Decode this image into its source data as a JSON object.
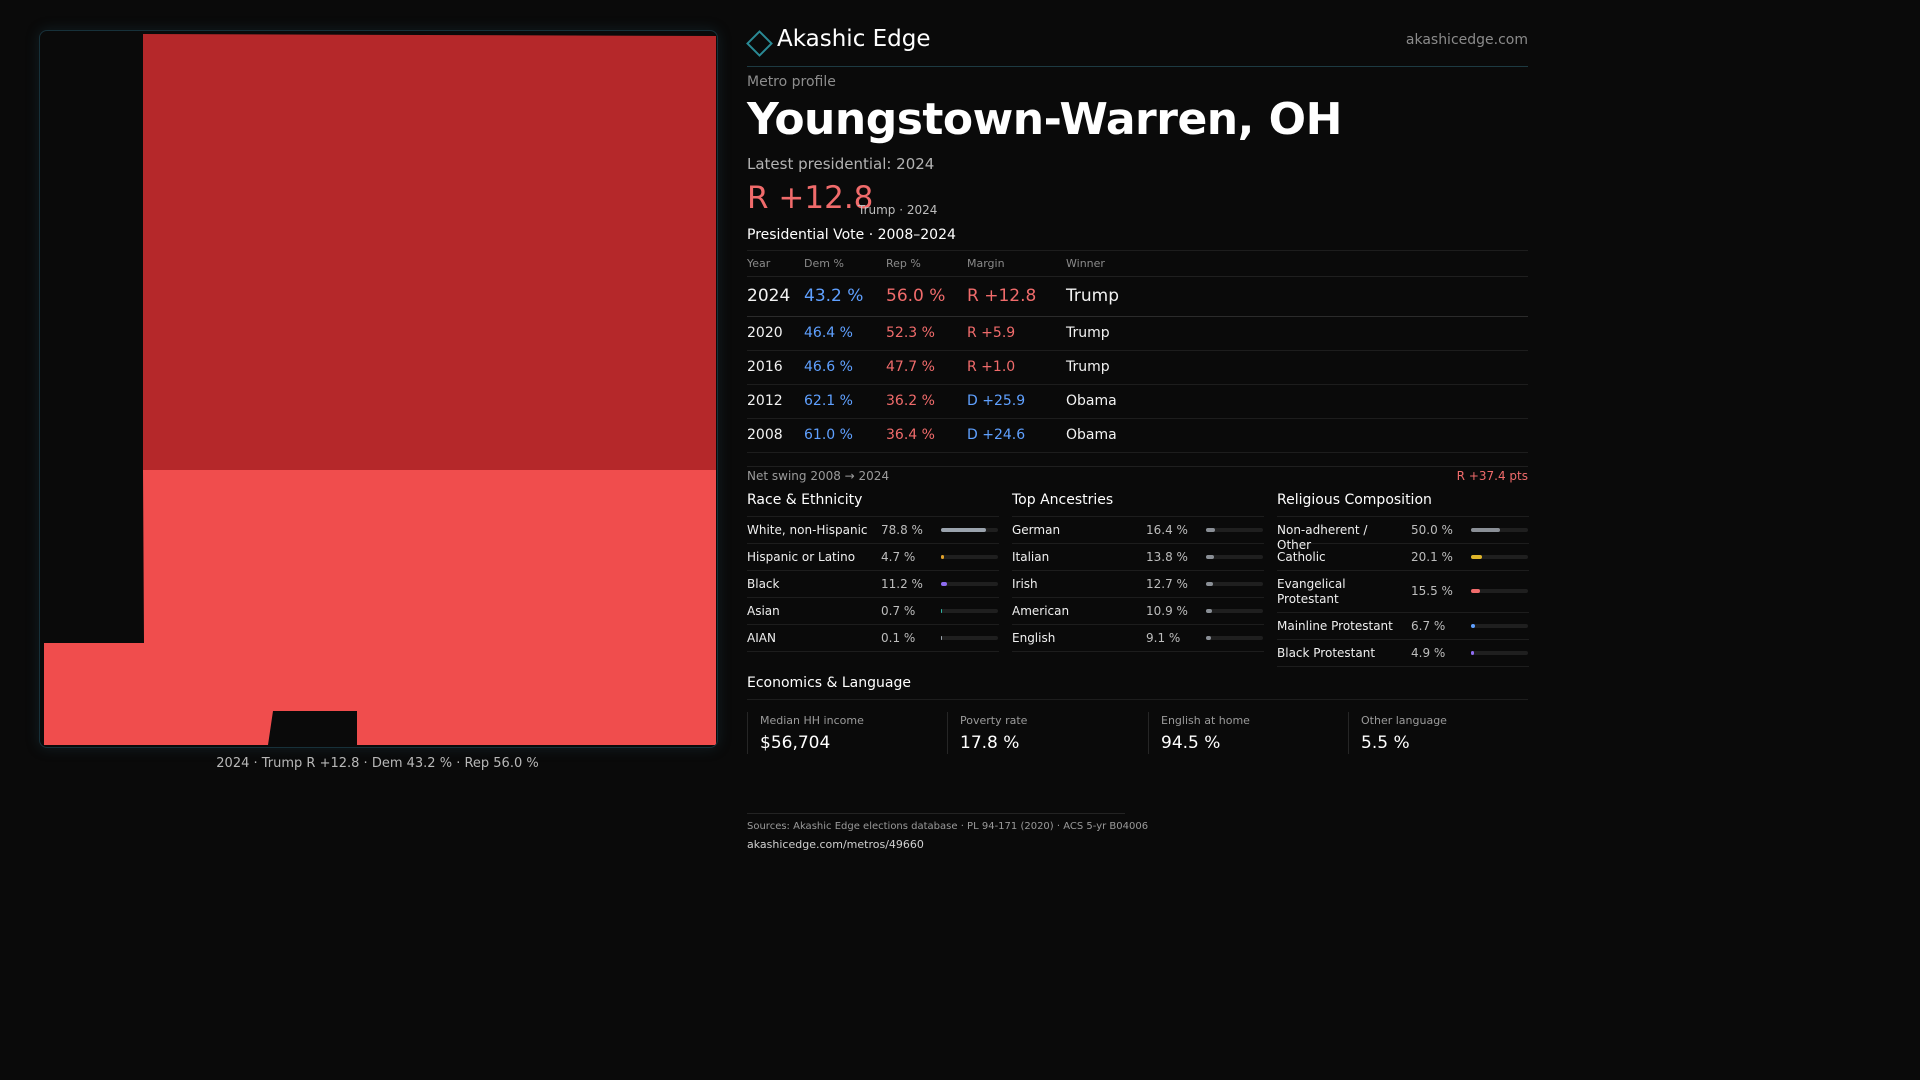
{
  "map": {
    "caption": "2024 · Trump R +12.8 · Dem 43.2 % · Rep 56.0 %",
    "colors": {
      "dark_red": "#b5282a",
      "light_red": "#f04d4d",
      "background": "#0a0a0a"
    }
  },
  "header": {
    "brand": "Akashic Edge",
    "url": "akashicedge.com",
    "kicker": "Metro profile",
    "title": "Youngstown-Warren,  OH",
    "latest_label": "Latest presidential: 2024",
    "margin": "R +12.8",
    "margin_note": "Trump · 2024"
  },
  "vote": {
    "title": "Presidential Vote · 2008–2024",
    "columns": [
      "Year",
      "Dem %",
      "Rep %",
      "Margin",
      "Winner"
    ],
    "rows": [
      {
        "year": "2024",
        "dem": "43.2 %",
        "rep": "56.0 %",
        "margin": "R +12.8",
        "winner": "Trump",
        "margin_party": "R"
      },
      {
        "year": "2020",
        "dem": "46.4 %",
        "rep": "52.3 %",
        "margin": "R +5.9",
        "winner": "Trump",
        "margin_party": "R"
      },
      {
        "year": "2016",
        "dem": "46.6 %",
        "rep": "47.7 %",
        "margin": "R +1.0",
        "winner": "Trump",
        "margin_party": "R"
      },
      {
        "year": "2012",
        "dem": "62.1 %",
        "rep": "36.2 %",
        "margin": "D +25.9",
        "winner": "Obama",
        "margin_party": "D"
      },
      {
        "year": "2008",
        "dem": "61.0 %",
        "rep": "36.4 %",
        "margin": "D +24.6",
        "winner": "Obama",
        "margin_party": "D"
      }
    ],
    "swing_label": "Net swing 2008 → 2024",
    "swing_value": "R +37.4 pts"
  },
  "race": {
    "title": "Race & Ethnicity",
    "items": [
      {
        "label": "White, non-Hispanic",
        "pct": "78.8 %",
        "value": 0.788,
        "color": "#9aa3ad"
      },
      {
        "label": "Hispanic or Latino",
        "pct": "4.7 %",
        "value": 0.047,
        "color": "#e0a12a"
      },
      {
        "label": "Black",
        "pct": "11.2 %",
        "value": 0.112,
        "color": "#8e6cf0"
      },
      {
        "label": "Asian",
        "pct": "0.7 %",
        "value": 0.007,
        "color": "#2fb3a0"
      },
      {
        "label": "AIAN",
        "pct": "0.1 %",
        "value": 0.001,
        "color": "#9aa3ad"
      }
    ]
  },
  "ancestry": {
    "title": "Top Ancestries",
    "items": [
      {
        "label": "German",
        "pct": "16.4 %",
        "value": 0.164,
        "color": "#8a8f96"
      },
      {
        "label": "Italian",
        "pct": "13.8 %",
        "value": 0.138,
        "color": "#8a8f96"
      },
      {
        "label": "Irish",
        "pct": "12.7 %",
        "value": 0.127,
        "color": "#8a8f96"
      },
      {
        "label": "American",
        "pct": "10.9 %",
        "value": 0.109,
        "color": "#8a8f96"
      },
      {
        "label": "English",
        "pct": "9.1 %",
        "value": 0.091,
        "color": "#8a8f96"
      }
    ]
  },
  "religion": {
    "title": "Religious Composition",
    "items": [
      {
        "label": "Non-adherent / Other",
        "pct": "50.0 %",
        "value": 0.5,
        "color": "#8a8f96"
      },
      {
        "label": "Catholic",
        "pct": "20.1 %",
        "value": 0.201,
        "color": "#e0b62a"
      },
      {
        "label": "Evangelical Protestant",
        "pct": "15.5 %",
        "value": 0.155,
        "color": "#f06b6b"
      },
      {
        "label": "Mainline Protestant",
        "pct": "6.7 %",
        "value": 0.067,
        "color": "#5fa0ff"
      },
      {
        "label": "Black Protestant",
        "pct": "4.9 %",
        "value": 0.049,
        "color": "#8e6cf0"
      }
    ]
  },
  "economics": {
    "title": "Economics & Language",
    "cards": [
      {
        "label": "Median HH income",
        "value": "$56,704"
      },
      {
        "label": "Poverty rate",
        "value": "17.8 %"
      },
      {
        "label": "English at home",
        "value": "94.5 %"
      },
      {
        "label": "Other language",
        "value": "5.5 %"
      }
    ]
  },
  "sources": {
    "line1": "Sources: Akashic Edge elections database · PL 94-171 (2020) · ACS 5-yr B04006",
    "line2": "akashicedge.com/metros/49660"
  }
}
